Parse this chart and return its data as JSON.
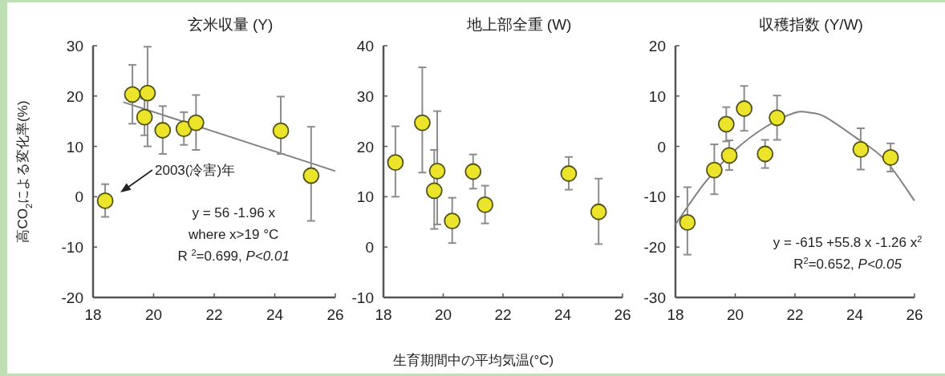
{
  "chart_data": [
    {
      "type": "scatter",
      "title": "玄米収量 (Y)",
      "ylabel": "高CO$_{2}$による変化率(%)",
      "xlim": [
        18,
        26
      ],
      "xticks": [
        18,
        20,
        22,
        24,
        26
      ],
      "ylim": [
        -20,
        30
      ],
      "yticks": [
        -20,
        -10,
        0,
        10,
        20,
        30
      ],
      "series": [
        {
          "type": "scatter",
          "marker": "circle",
          "color": "#ece42a",
          "x": [
            18.4,
            19.3,
            19.7,
            19.8,
            20.3,
            21.0,
            21.4,
            24.2,
            25.2
          ],
          "values": [
            -0.8,
            20.3,
            15.8,
            20.6,
            13.2,
            13.5,
            14.7,
            13.1,
            4.2
          ],
          "errors": [
            [
              -4,
              2.5
            ],
            [
              14.5,
              26.2
            ],
            [
              12.2,
              19.5
            ],
            [
              10,
              29.8
            ],
            [
              8.5,
              18
            ],
            [
              10.3,
              16.8
            ],
            [
              9.3,
              20.2
            ],
            [
              8.5,
              19.9
            ],
            [
              -4.8,
              13.9
            ]
          ]
        },
        {
          "type": "line",
          "color": "#808080",
          "x": [
            19,
            26
          ],
          "values": [
            18.8,
            5.1
          ]
        }
      ],
      "annotations": [
        "2003(冷害)年",
        "y = 56 -1.96 x",
        "where x>19 °C",
        "R $^{2}$=0.699, *P<0.01*"
      ]
    },
    {
      "type": "scatter",
      "title": "地上部全重 (W)",
      "xlabel": "生育期間中の平均気温(°C)",
      "xlim": [
        18,
        26
      ],
      "xticks": [
        18,
        20,
        22,
        24,
        26
      ],
      "ylim": [
        -10,
        40
      ],
      "yticks": [
        -10,
        0,
        10,
        20,
        30,
        40
      ],
      "series": [
        {
          "type": "scatter",
          "marker": "circle",
          "color": "#ece42a",
          "x": [
            18.4,
            19.3,
            19.7,
            19.8,
            20.3,
            21.0,
            21.4,
            24.2,
            25.2
          ],
          "values": [
            16.8,
            24.7,
            11.2,
            15.1,
            5.2,
            15.0,
            8.4,
            14.6,
            7.0
          ],
          "errors": [
            [
              10,
              24
            ],
            [
              14.8,
              35.7
            ],
            [
              3.6,
              19.3
            ],
            [
              4.5,
              27
            ],
            [
              0.8,
              9.8
            ],
            [
              11.6,
              18.4
            ],
            [
              4.7,
              12.2
            ],
            [
              11.4,
              17.9
            ],
            [
              0.6,
              13.6
            ]
          ]
        }
      ]
    },
    {
      "type": "scatter",
      "title": "収穫指数 (Y/W)",
      "xlim": [
        18,
        26
      ],
      "xticks": [
        18,
        20,
        22,
        24,
        26
      ],
      "ylim": [
        -30,
        20
      ],
      "yticks": [
        -30,
        -20,
        -10,
        0,
        10,
        20
      ],
      "series": [
        {
          "type": "scatter",
          "marker": "circle",
          "color": "#ece42a",
          "x": [
            18.4,
            19.3,
            19.7,
            19.8,
            20.3,
            21.0,
            21.4,
            24.2,
            25.2
          ],
          "values": [
            -15.1,
            -4.7,
            4.4,
            -1.8,
            7.5,
            -1.5,
            5.7,
            -0.6,
            -2.2
          ],
          "errors": [
            [
              -21.5,
              -8.1
            ],
            [
              -9.5,
              0.4
            ],
            [
              1.0,
              7.8
            ],
            [
              -4.7,
              1.2
            ],
            [
              3.1,
              12
            ],
            [
              -4.3,
              1.3
            ],
            [
              1.3,
              10.1
            ],
            [
              -4.6,
              3.6
            ],
            [
              -5.0,
              0.6
            ]
          ]
        },
        {
          "type": "line",
          "color": "#808080",
          "x": [
            18,
            19,
            20,
            21,
            22,
            22.5,
            23,
            24,
            25,
            26
          ],
          "values": [
            -15.5,
            -7.1,
            -0.7,
            3.8,
            6.7,
            6.7,
            5.9,
            1.9,
            -2.6,
            -10.8
          ]
        }
      ],
      "annotations": [
        "y = -615 +55.8 x -1.26 x$^{2}$",
        "R$^{2}$=0.652, *P<0.05*"
      ]
    }
  ]
}
